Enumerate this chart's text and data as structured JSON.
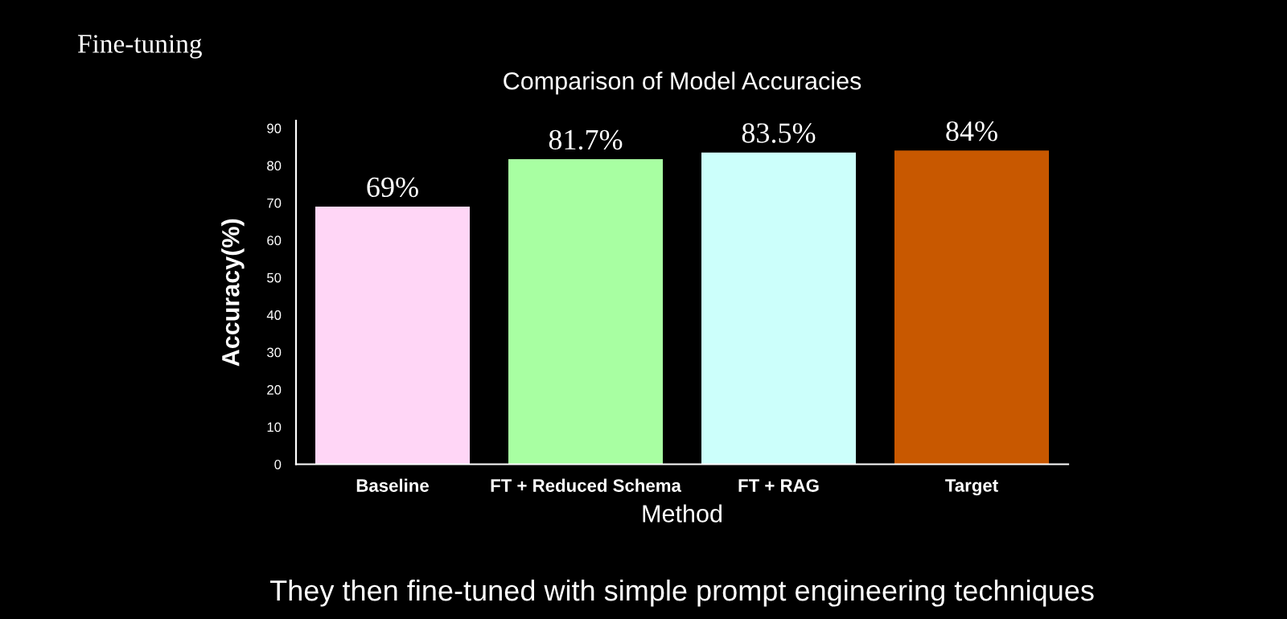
{
  "chart_data": {
    "type": "bar",
    "title": "Comparison of Model Accuracies",
    "subtitle": "Fine-tuning",
    "categories": [
      "Baseline",
      "FT + Reduced Schema",
      "FT + RAG",
      "Target"
    ],
    "values": [
      69,
      81.7,
      83.5,
      84
    ],
    "value_labels": [
      "69%",
      "81.7%",
      "83.5%",
      "84%"
    ],
    "colors": [
      "#ffd6f6",
      "#a8ffa2",
      "#ccfffb",
      "#c85800"
    ],
    "xlabel": "Method",
    "ylabel": "Accuracy(%)",
    "ylim": [
      0,
      92
    ],
    "yticks": [
      0,
      10,
      20,
      30,
      40,
      50,
      60,
      70,
      80,
      90
    ],
    "grid": false,
    "legend": false,
    "annotations": [
      "They then fine-tuned with simple prompt engineering techniques"
    ]
  }
}
